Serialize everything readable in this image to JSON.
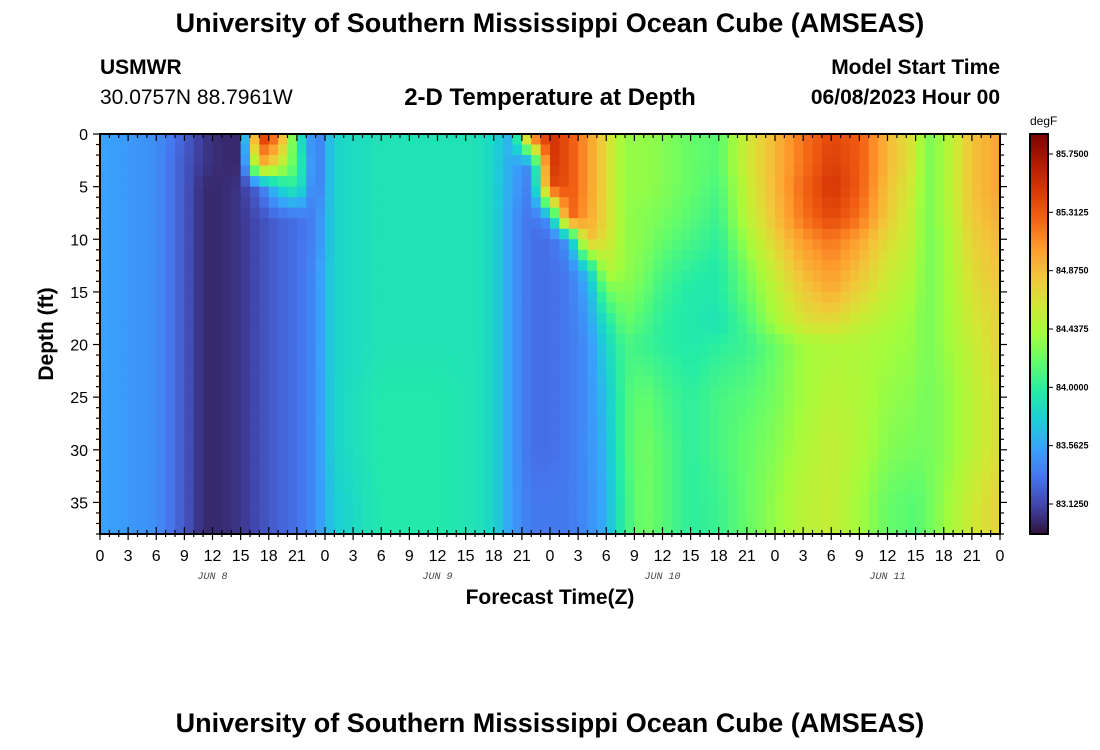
{
  "header": {
    "title": "University of Southern Mississippi Ocean Cube (AMSEAS)",
    "station_id": "USMWR",
    "station_coords": "30.0757N  88.7961W",
    "plot_title": "2-D Temperature at Depth",
    "model_start_label": "Model Start Time",
    "model_start_value": "06/08/2023 Hour 00"
  },
  "footer": {
    "title": "University of Southern Mississippi Ocean Cube (AMSEAS)"
  },
  "chart_data": {
    "type": "heatmap",
    "xlabel": "Forecast Time(Z)",
    "ylabel": "Depth (ft)",
    "x_unit": "hours since model start",
    "xlim": [
      0,
      96
    ],
    "ylim": [
      0,
      38
    ],
    "y_inverted": true,
    "x_tick_values": [
      0,
      3,
      6,
      9,
      12,
      15,
      18,
      21,
      24,
      27,
      30,
      33,
      36,
      39,
      42,
      45,
      48,
      51,
      54,
      57,
      60,
      63,
      66,
      69,
      72,
      75,
      78,
      81,
      84,
      87,
      90,
      93,
      96
    ],
    "x_tick_labels": [
      "0",
      "3",
      "6",
      "9",
      "12",
      "15",
      "18",
      "21",
      "0",
      "3",
      "6",
      "9",
      "12",
      "15",
      "18",
      "21",
      "0",
      "3",
      "6",
      "9",
      "12",
      "15",
      "18",
      "21",
      "0",
      "3",
      "6",
      "9",
      "12",
      "15",
      "18",
      "21",
      "0"
    ],
    "day_labels": [
      {
        "label": "JUN 8",
        "hour": 12
      },
      {
        "label": "JUN 9",
        "hour": 36
      },
      {
        "label": "JUN 10",
        "hour": 60
      },
      {
        "label": "JUN 11",
        "hour": 84
      }
    ],
    "y_tick_values": [
      0,
      5,
      10,
      15,
      20,
      25,
      30,
      35
    ],
    "y_tick_labels": [
      "0",
      "5",
      "10",
      "15",
      "20",
      "25",
      "30",
      "35"
    ],
    "colorbar": {
      "unit": "degF",
      "min": 82.9,
      "max": 85.9,
      "tick_values": [
        85.75,
        85.3125,
        84.875,
        84.4375,
        84.0,
        83.5625,
        83.125
      ],
      "tick_labels": [
        "85.7500",
        "85.3125",
        "84.8750",
        "84.4375",
        "84.0000",
        "83.5625",
        "83.1250"
      ],
      "colors": [
        "#30123b",
        "#4145ab",
        "#4675ed",
        "#39a2fc",
        "#1bcfd4",
        "#24eca6",
        "#61fc6c",
        "#a4fc3b",
        "#d1e834",
        "#f3c63a",
        "#fe9b2d",
        "#f36315",
        "#d93806",
        "#b11901",
        "#7a0402"
      ]
    },
    "depths_ft": [
      0,
      3,
      5,
      8,
      10,
      13,
      15,
      18,
      20,
      25,
      30,
      35,
      38
    ],
    "time_hours": [
      0,
      6,
      9,
      11,
      13,
      15,
      17,
      19,
      21,
      23,
      25,
      30,
      36,
      40,
      42,
      44,
      46,
      48,
      50,
      52,
      54,
      56,
      58,
      60,
      63,
      66,
      69,
      72,
      75,
      78,
      81,
      84,
      87,
      88,
      90,
      93,
      96
    ],
    "temperature_degF": [
      [
        83.55,
        83.45,
        83.25,
        83.05,
        83.0,
        83.0,
        85.6,
        85.2,
        84.0,
        83.3,
        83.8,
        83.9,
        83.9,
        83.9,
        83.8,
        83.6,
        85.3,
        85.55,
        85.35,
        85.05,
        84.7,
        84.35,
        84.35,
        84.3,
        84.2,
        84.15,
        84.6,
        84.9,
        85.2,
        85.4,
        85.3,
        84.9,
        84.6,
        84.25,
        84.4,
        84.85,
        85.0
      ],
      [
        83.55,
        83.45,
        83.2,
        83.05,
        83.0,
        83.0,
        84.95,
        84.6,
        84.1,
        83.3,
        83.8,
        83.9,
        83.9,
        83.9,
        83.8,
        83.55,
        83.4,
        85.5,
        85.35,
        85.05,
        84.7,
        84.35,
        84.35,
        84.3,
        84.2,
        84.15,
        84.6,
        84.9,
        85.2,
        85.45,
        85.3,
        84.9,
        84.6,
        84.25,
        84.4,
        84.85,
        85.0
      ],
      [
        83.55,
        83.45,
        83.2,
        83.0,
        83.0,
        83.05,
        83.3,
        83.8,
        84.0,
        83.3,
        83.8,
        83.9,
        83.9,
        83.9,
        83.8,
        83.55,
        83.35,
        85.4,
        85.35,
        85.05,
        84.7,
        84.35,
        84.35,
        84.3,
        84.2,
        84.1,
        84.55,
        84.9,
        85.25,
        85.5,
        85.3,
        84.85,
        84.55,
        84.25,
        84.4,
        84.85,
        85.0
      ],
      [
        83.55,
        83.45,
        83.2,
        83.0,
        83.0,
        83.05,
        83.15,
        83.25,
        83.3,
        83.4,
        83.8,
        83.9,
        83.9,
        83.9,
        83.8,
        83.5,
        83.3,
        83.5,
        85.3,
        85.0,
        84.7,
        84.35,
        84.3,
        84.25,
        84.15,
        84.05,
        84.5,
        84.85,
        85.2,
        85.4,
        85.2,
        84.8,
        84.5,
        84.25,
        84.4,
        84.8,
        84.95
      ],
      [
        83.55,
        83.45,
        83.2,
        83.0,
        83.0,
        83.05,
        83.15,
        83.25,
        83.3,
        83.4,
        83.8,
        83.9,
        83.9,
        83.9,
        83.8,
        83.5,
        83.3,
        83.3,
        83.5,
        84.9,
        84.65,
        84.35,
        84.3,
        84.2,
        84.1,
        84.0,
        84.4,
        84.75,
        85.05,
        85.2,
        85.0,
        84.7,
        84.5,
        84.25,
        84.35,
        84.75,
        84.9
      ],
      [
        83.55,
        83.45,
        83.2,
        83.0,
        83.0,
        83.05,
        83.15,
        83.25,
        83.3,
        83.45,
        83.8,
        83.9,
        83.9,
        83.9,
        83.8,
        83.5,
        83.3,
        83.3,
        83.35,
        83.7,
        84.5,
        84.35,
        84.25,
        84.1,
        84.0,
        83.95,
        84.25,
        84.6,
        84.9,
        85.05,
        84.85,
        84.6,
        84.45,
        84.25,
        84.35,
        84.7,
        84.85
      ],
      [
        83.55,
        83.45,
        83.2,
        83.0,
        83.0,
        83.05,
        83.15,
        83.25,
        83.3,
        83.45,
        83.8,
        83.9,
        83.9,
        83.9,
        83.8,
        83.5,
        83.3,
        83.3,
        83.35,
        83.55,
        84.2,
        84.3,
        84.2,
        84.05,
        83.95,
        83.95,
        84.2,
        84.5,
        84.8,
        84.95,
        84.75,
        84.55,
        84.4,
        84.25,
        84.35,
        84.65,
        84.8
      ],
      [
        83.55,
        83.45,
        83.2,
        83.0,
        83.0,
        83.05,
        83.15,
        83.25,
        83.3,
        83.45,
        83.8,
        83.9,
        83.9,
        83.9,
        83.8,
        83.5,
        83.3,
        83.3,
        83.35,
        83.5,
        83.9,
        84.2,
        84.1,
        84.0,
        83.95,
        83.9,
        84.1,
        84.4,
        84.65,
        84.7,
        84.55,
        84.45,
        84.35,
        84.25,
        84.35,
        84.6,
        84.75
      ],
      [
        83.55,
        83.45,
        83.2,
        83.0,
        83.0,
        83.05,
        83.15,
        83.25,
        83.3,
        83.45,
        83.8,
        83.9,
        83.9,
        83.9,
        83.8,
        83.5,
        83.3,
        83.3,
        83.35,
        83.45,
        83.8,
        84.1,
        84.05,
        84.0,
        83.95,
        84.0,
        84.05,
        84.2,
        84.4,
        84.45,
        84.45,
        84.4,
        84.35,
        84.25,
        84.35,
        84.55,
        84.75
      ],
      [
        83.55,
        83.45,
        83.2,
        83.0,
        83.0,
        83.05,
        83.15,
        83.25,
        83.3,
        83.45,
        83.8,
        83.95,
        83.95,
        83.9,
        83.8,
        83.5,
        83.3,
        83.3,
        83.35,
        83.45,
        83.7,
        84.1,
        84.2,
        84.1,
        84.0,
        84.1,
        84.15,
        84.25,
        84.4,
        84.5,
        84.45,
        84.35,
        84.3,
        84.25,
        84.3,
        84.5,
        84.7
      ],
      [
        83.55,
        83.45,
        83.2,
        83.0,
        83.0,
        83.05,
        83.15,
        83.25,
        83.3,
        83.45,
        83.8,
        83.95,
        83.95,
        83.9,
        83.8,
        83.5,
        83.3,
        83.3,
        83.35,
        83.45,
        83.65,
        84.1,
        84.25,
        84.15,
        84.0,
        84.1,
        84.2,
        84.3,
        84.45,
        84.55,
        84.45,
        84.3,
        84.25,
        84.25,
        84.3,
        84.5,
        84.7
      ],
      [
        83.55,
        83.45,
        83.2,
        83.0,
        83.0,
        83.05,
        83.15,
        83.25,
        83.3,
        83.45,
        83.75,
        83.95,
        83.95,
        83.9,
        83.8,
        83.5,
        83.35,
        83.35,
        83.35,
        83.45,
        83.6,
        84.05,
        84.25,
        84.15,
        84.0,
        84.05,
        84.2,
        84.35,
        84.5,
        84.55,
        84.4,
        84.2,
        84.15,
        84.2,
        84.35,
        84.6,
        84.75
      ],
      [
        83.55,
        83.45,
        83.2,
        83.0,
        83.0,
        83.05,
        83.15,
        83.25,
        83.3,
        83.45,
        83.75,
        83.95,
        83.95,
        83.9,
        83.8,
        83.5,
        83.35,
        83.35,
        83.35,
        83.45,
        83.6,
        84.05,
        84.25,
        84.15,
        84.0,
        84.05,
        84.2,
        84.35,
        84.5,
        84.55,
        84.4,
        84.2,
        84.15,
        84.2,
        84.35,
        84.6,
        84.75
      ]
    ]
  }
}
